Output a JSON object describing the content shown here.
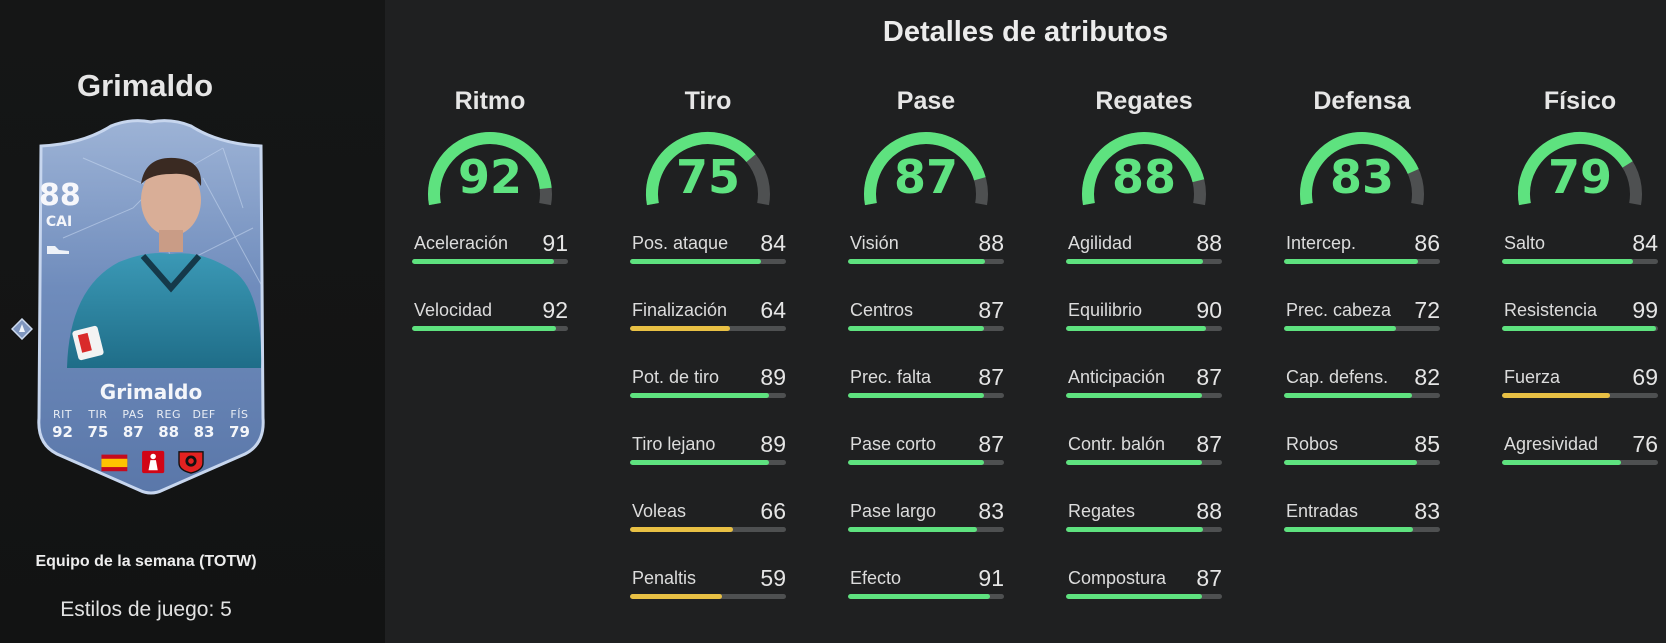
{
  "player": {
    "name": "Grimaldo",
    "promo": "Equipo de la semana (TOTW)",
    "playstyles": "Estilos de juego: 5",
    "card": {
      "rating": "88",
      "position": "CAI",
      "name": "Grimaldo",
      "stats": [
        {
          "label": "RIT",
          "value": "92"
        },
        {
          "label": "TIR",
          "value": "75"
        },
        {
          "label": "PAS",
          "value": "87"
        },
        {
          "label": "REG",
          "value": "88"
        },
        {
          "label": "DEF",
          "value": "83"
        },
        {
          "label": "FÍS",
          "value": "79"
        }
      ],
      "icons": [
        "boot-icon",
        "playstyle-diamond-icon",
        "spain-flag-icon",
        "bundesliga-logo-icon",
        "leverkusen-crest-icon"
      ]
    }
  },
  "section_title": "Detalles de atributos",
  "colors": {
    "high": "#5ee27f",
    "mid": "#e8c044",
    "track": "#4e5051",
    "gauge_value": "#5fe381"
  },
  "categories": [
    {
      "name": "Ritmo",
      "value": 92,
      "attributes": [
        {
          "label": "Aceleración",
          "value": 91
        },
        {
          "label": "Velocidad",
          "value": 92
        }
      ]
    },
    {
      "name": "Tiro",
      "value": 75,
      "attributes": [
        {
          "label": "Pos. ataque",
          "value": 84
        },
        {
          "label": "Finalización",
          "value": 64
        },
        {
          "label": "Pot. de tiro",
          "value": 89
        },
        {
          "label": "Tiro lejano",
          "value": 89
        },
        {
          "label": "Voleas",
          "value": 66
        },
        {
          "label": "Penaltis",
          "value": 59
        }
      ]
    },
    {
      "name": "Pase",
      "value": 87,
      "attributes": [
        {
          "label": "Visión",
          "value": 88
        },
        {
          "label": "Centros",
          "value": 87
        },
        {
          "label": "Prec. falta",
          "value": 87
        },
        {
          "label": "Pase corto",
          "value": 87
        },
        {
          "label": "Pase largo",
          "value": 83
        },
        {
          "label": "Efecto",
          "value": 91
        }
      ]
    },
    {
      "name": "Regates",
      "value": 88,
      "attributes": [
        {
          "label": "Agilidad",
          "value": 88
        },
        {
          "label": "Equilibrio",
          "value": 90
        },
        {
          "label": "Anticipación",
          "value": 87
        },
        {
          "label": "Contr. balón",
          "value": 87
        },
        {
          "label": "Regates",
          "value": 88
        },
        {
          "label": "Compostura",
          "value": 87
        }
      ]
    },
    {
      "name": "Defensa",
      "value": 83,
      "attributes": [
        {
          "label": "Intercep.",
          "value": 86
        },
        {
          "label": "Prec. cabeza",
          "value": 72
        },
        {
          "label": "Cap. defens.",
          "value": 82
        },
        {
          "label": "Robos",
          "value": 85
        },
        {
          "label": "Entradas",
          "value": 83
        }
      ]
    },
    {
      "name": "Físico",
      "value": 79,
      "attributes": [
        {
          "label": "Salto",
          "value": 84
        },
        {
          "label": "Resistencia",
          "value": 99
        },
        {
          "label": "Fuerza",
          "value": 69
        },
        {
          "label": "Agresividad",
          "value": 76
        }
      ]
    }
  ]
}
